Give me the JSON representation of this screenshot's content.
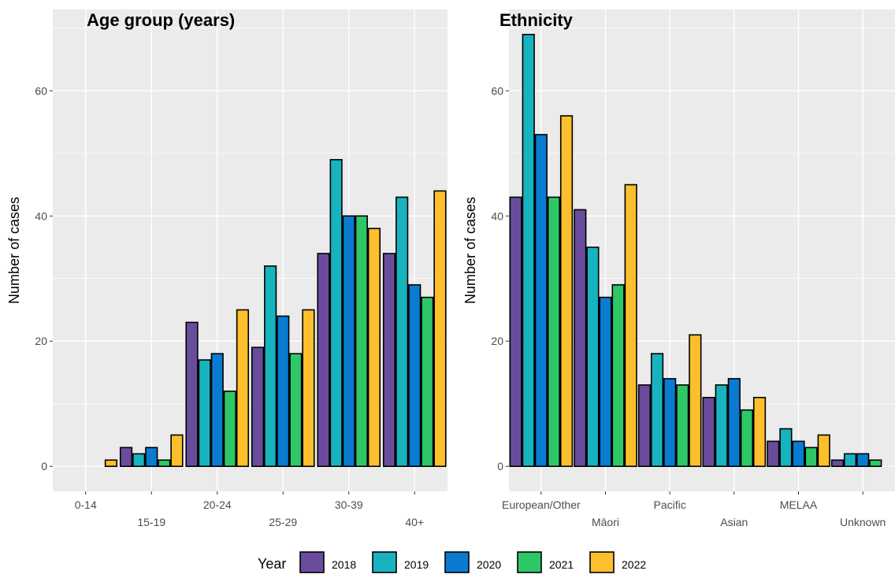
{
  "colors": {
    "2018": "#6a4c9c",
    "2019": "#17b3be",
    "2020": "#0a7bd1",
    "2021": "#2ec768",
    "2022": "#fdbf2b",
    "panel_bg": "#ebebeb",
    "grid": "#ffffff"
  },
  "legend": {
    "title": "Year",
    "items": [
      "2018",
      "2019",
      "2020",
      "2021",
      "2022"
    ]
  },
  "chart_data": [
    {
      "type": "bar",
      "title": "Age group (years)",
      "xlabel": "",
      "ylabel": "Number of cases",
      "ylim": [
        -4,
        73
      ],
      "yticks": [
        0,
        20,
        40,
        60
      ],
      "grid": true,
      "categories": [
        "0-14",
        "15-19",
        "20-24",
        "25-29",
        "30-39",
        "40+"
      ],
      "series": [
        {
          "name": "2018",
          "values": [
            0,
            3,
            23,
            19,
            34,
            34
          ]
        },
        {
          "name": "2019",
          "values": [
            0,
            2,
            17,
            32,
            49,
            43
          ]
        },
        {
          "name": "2020",
          "values": [
            0,
            3,
            18,
            24,
            40,
            29
          ]
        },
        {
          "name": "2021",
          "values": [
            0,
            1,
            12,
            18,
            40,
            27
          ]
        },
        {
          "name": "2022",
          "values": [
            1,
            5,
            25,
            25,
            38,
            44
          ]
        }
      ]
    },
    {
      "type": "bar",
      "title": "Ethnicity",
      "xlabel": "",
      "ylabel": "Number of cases",
      "ylim": [
        -4,
        73
      ],
      "yticks": [
        0,
        20,
        40,
        60
      ],
      "grid": true,
      "categories": [
        "European/Other",
        "Māori",
        "Pacific",
        "Asian",
        "MELAA",
        "Unknown"
      ],
      "series": [
        {
          "name": "2018",
          "values": [
            43,
            41,
            13,
            11,
            4,
            1
          ]
        },
        {
          "name": "2019",
          "values": [
            69,
            35,
            18,
            13,
            6,
            2
          ]
        },
        {
          "name": "2020",
          "values": [
            53,
            27,
            14,
            14,
            4,
            2
          ]
        },
        {
          "name": "2021",
          "values": [
            43,
            29,
            13,
            9,
            3,
            1
          ]
        },
        {
          "name": "2022",
          "values": [
            56,
            45,
            21,
            11,
            5,
            0
          ]
        }
      ]
    }
  ]
}
